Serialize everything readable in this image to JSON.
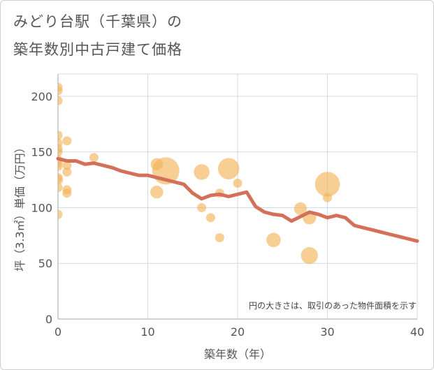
{
  "title_line1": "みどり台駅（千葉県）の",
  "title_line2": "築年数別中古戸建て価格",
  "chart_data": {
    "type": "scatter",
    "xlabel": "築年数（年）",
    "ylabel": "坪（3.3㎡）単価（万円）",
    "xlim": [
      0,
      40
    ],
    "ylim": [
      0,
      220
    ],
    "xticks": [
      0,
      10,
      20,
      30,
      40
    ],
    "yticks": [
      0,
      50,
      100,
      150,
      200
    ],
    "grid": true,
    "note": "円の大きさは、取引のあった物件面積を示す",
    "colors": {
      "bubble": "#f2b35a",
      "line": "#d4705a",
      "grid": "#cfdbe6",
      "text": "#555555"
    },
    "points": [
      {
        "x": 0,
        "y": 208,
        "size": 1
      },
      {
        "x": 0,
        "y": 205,
        "size": 1
      },
      {
        "x": 0,
        "y": 196,
        "size": 1
      },
      {
        "x": 0,
        "y": 165,
        "size": 1
      },
      {
        "x": 0,
        "y": 158,
        "size": 1
      },
      {
        "x": 0,
        "y": 153,
        "size": 1
      },
      {
        "x": 0,
        "y": 150,
        "size": 1
      },
      {
        "x": 0,
        "y": 143,
        "size": 1
      },
      {
        "x": 0,
        "y": 140,
        "size": 1
      },
      {
        "x": 0,
        "y": 137,
        "size": 1
      },
      {
        "x": 0,
        "y": 127,
        "size": 1
      },
      {
        "x": 0,
        "y": 125,
        "size": 1.2
      },
      {
        "x": 0,
        "y": 118,
        "size": 1
      },
      {
        "x": 0,
        "y": 94,
        "size": 1
      },
      {
        "x": 1,
        "y": 160,
        "size": 1
      },
      {
        "x": 1,
        "y": 138,
        "size": 1
      },
      {
        "x": 1,
        "y": 132,
        "size": 1
      },
      {
        "x": 1,
        "y": 116,
        "size": 1
      },
      {
        "x": 1,
        "y": 113,
        "size": 1
      },
      {
        "x": 4,
        "y": 145,
        "size": 1
      },
      {
        "x": 11,
        "y": 139,
        "size": 1.8
      },
      {
        "x": 11,
        "y": 114,
        "size": 2
      },
      {
        "x": 12,
        "y": 133,
        "size": 9
      },
      {
        "x": 16,
        "y": 132,
        "size": 3
      },
      {
        "x": 16,
        "y": 100,
        "size": 1
      },
      {
        "x": 17,
        "y": 91,
        "size": 1
      },
      {
        "x": 18,
        "y": 113,
        "size": 1
      },
      {
        "x": 18,
        "y": 73,
        "size": 1
      },
      {
        "x": 19,
        "y": 135,
        "size": 5.5
      },
      {
        "x": 20,
        "y": 122,
        "size": 1
      },
      {
        "x": 24,
        "y": 71,
        "size": 2.5
      },
      {
        "x": 27,
        "y": 99,
        "size": 2
      },
      {
        "x": 28,
        "y": 91,
        "size": 2.2
      },
      {
        "x": 28,
        "y": 57,
        "size": 3.5
      },
      {
        "x": 30,
        "y": 121,
        "size": 7.5
      },
      {
        "x": 30,
        "y": 109,
        "size": 1
      }
    ],
    "trend": {
      "x": [
        0,
        1,
        2,
        3,
        4,
        5,
        6,
        7,
        8,
        9,
        10,
        11,
        12,
        13,
        14,
        15,
        16,
        17,
        18,
        19,
        20,
        21,
        22,
        23,
        24,
        25,
        26,
        27,
        28,
        29,
        30,
        31,
        32,
        33,
        34,
        35,
        36,
        37,
        38,
        39,
        40
      ],
      "y": [
        144,
        142,
        142,
        139,
        140,
        138,
        136,
        133,
        131,
        129,
        129,
        127,
        125,
        123,
        121,
        113,
        108,
        111,
        112,
        110,
        112,
        114,
        101,
        96,
        94,
        93,
        88,
        92,
        96,
        94,
        91,
        93,
        91,
        84,
        82,
        80,
        78,
        76,
        74,
        72,
        70
      ]
    }
  }
}
